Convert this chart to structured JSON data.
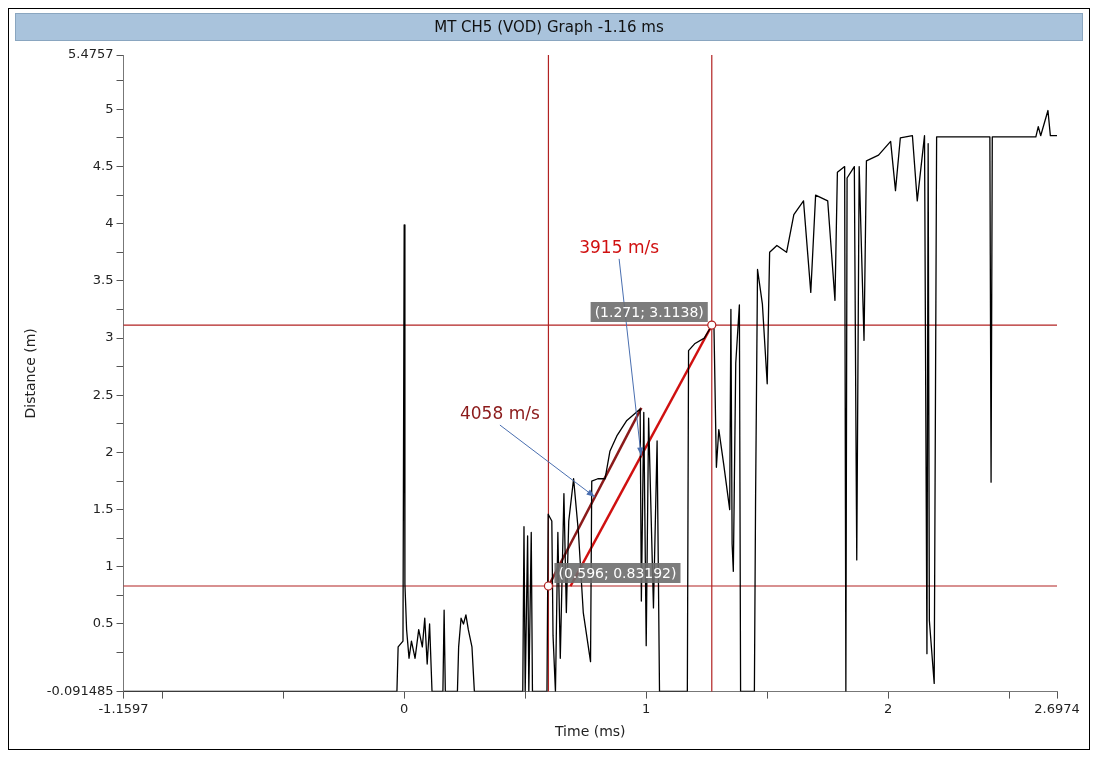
{
  "chart_data": {
    "type": "line",
    "title": "MT CH5 (VOD) Graph -1.16 ms",
    "xlabel": "Time (ms)",
    "ylabel": "Distance (m)",
    "xlim": [
      -1.1597,
      2.6974
    ],
    "xticks": [
      -1.1597,
      {
        "value": -1,
        "label": null
      },
      {
        "value": -0.5,
        "label": null
      },
      0,
      {
        "value": 0.5,
        "label": null
      },
      1,
      {
        "value": 1.5,
        "label": null
      },
      2,
      {
        "value": 2.5,
        "label": null
      },
      2.6974
    ],
    "ylim": [
      -0.091485,
      5.4757
    ],
    "yticks": [
      -0.091485,
      {
        "value": 0.25,
        "label": null
      },
      0.5,
      {
        "value": 0.75,
        "label": null
      },
      1,
      {
        "value": 1.25,
        "label": null
      },
      1.5,
      {
        "value": 1.75,
        "label": null
      },
      2,
      {
        "value": 2.25,
        "label": null
      },
      2.5,
      {
        "value": 2.75,
        "label": null
      },
      3,
      {
        "value": 3.25,
        "label": null
      },
      3.5,
      {
        "value": 3.75,
        "label": null
      },
      4,
      {
        "value": 4.25,
        "label": null
      },
      4.5,
      {
        "value": 4.75,
        "label": null
      },
      5,
      {
        "value": 5.25,
        "label": null
      },
      5.4757
    ],
    "series": [
      {
        "color": "#000000",
        "x": [
          -1.1597,
          -0.03,
          -0.025,
          -0.005,
          0,
          0.003,
          0.01,
          0.02,
          0.03,
          0.045,
          0.06,
          0.075,
          0.085,
          0.095,
          0.105,
          0.115,
          0.16,
          0.165,
          0.17,
          0.22,
          0.225,
          0.235,
          0.245,
          0.255,
          0.265,
          0.28,
          0.29,
          0.49,
          0.495,
          0.5,
          0.51,
          0.515,
          0.525,
          0.53,
          0.59,
          0.595,
          0.61,
          0.615,
          0.625,
          0.635,
          0.645,
          0.66,
          0.67,
          0.68,
          0.7,
          0.72,
          0.74,
          0.77,
          0.775,
          0.8,
          0.83,
          0.85,
          0.88,
          0.92,
          0.975,
          0.98,
          0.99,
          1.0,
          1.01,
          1.03,
          1.045,
          1.055,
          1.17,
          1.175,
          1.2,
          1.24,
          1.271,
          1.28,
          1.29,
          1.3,
          1.32,
          1.345,
          1.35,
          1.355,
          1.36,
          1.37,
          1.385,
          1.39,
          1.447,
          1.452,
          1.46,
          1.48,
          1.5,
          1.51,
          1.54,
          1.58,
          1.61,
          1.65,
          1.68,
          1.7,
          1.75,
          1.78,
          1.79,
          1.82,
          1.825,
          1.83,
          1.86,
          1.87,
          1.88,
          1.9,
          1.91,
          1.96,
          2.01,
          2.03,
          2.05,
          2.1,
          2.12,
          2.15,
          2.16,
          2.165,
          2.17,
          2.19,
          2.2,
          2.42,
          2.425,
          2.43,
          2.61,
          2.62,
          2.63,
          2.66,
          2.67,
          2.6974
        ],
        "values": [
          -0.09,
          -0.09,
          0.3,
          0.35,
          3.99,
          0.85,
          0.45,
          0.2,
          0.35,
          0.2,
          0.45,
          0.3,
          0.55,
          0.15,
          0.5,
          -0.09,
          -0.09,
          0.62,
          -0.09,
          -0.09,
          0.3,
          0.55,
          0.5,
          0.58,
          0.45,
          0.3,
          -0.09,
          -0.09,
          1.35,
          -0.09,
          1.27,
          -0.09,
          1.3,
          -0.09,
          -0.09,
          1.46,
          1.4,
          0.4,
          -0.09,
          1.3,
          0.2,
          1.64,
          0.6,
          1.4,
          1.77,
          1.3,
          0.6,
          0.17,
          1.75,
          1.77,
          1.77,
          2.01,
          2.15,
          2.28,
          2.38,
          0.7,
          2.35,
          0.31,
          2.3,
          0.64,
          2.1,
          -0.09,
          -0.09,
          2.89,
          2.95,
          3.0,
          3.11,
          3.1,
          1.87,
          2.2,
          1.9,
          1.5,
          3.25,
          1.2,
          0.96,
          2.78,
          3.29,
          -0.09,
          -0.09,
          1.61,
          3.6,
          3.3,
          2.6,
          3.75,
          3.81,
          3.75,
          4.08,
          4.2,
          3.4,
          4.25,
          4.2,
          3.33,
          4.45,
          4.5,
          -0.09,
          4.4,
          4.5,
          1.06,
          4.5,
          2.98,
          4.55,
          4.6,
          4.72,
          4.29,
          4.75,
          4.77,
          4.2,
          4.77,
          0.24,
          4.7,
          0.53,
          -0.02,
          4.76,
          4.76,
          1.74,
          4.76,
          4.76,
          4.85,
          4.77,
          4.99,
          4.77,
          4.77
        ]
      },
      {
        "name": "4058 m/s",
        "color": "#8b1a1a",
        "x": [
          0.596,
          0.98
        ],
        "values": [
          0.83,
          2.39
        ]
      },
      {
        "name": "3915 m/s",
        "color": "#d01010",
        "x": [
          0.687,
          1.271
        ],
        "values": [
          0.83,
          3.11
        ]
      }
    ],
    "ref_lines": [
      {
        "axis": "x",
        "value": 0.596,
        "color": "#b22222"
      },
      {
        "axis": "x",
        "value": 1.271,
        "color": "#b22222"
      },
      {
        "axis": "y",
        "value": 0.83192,
        "color": "#b22222"
      },
      {
        "axis": "y",
        "value": 3.1138,
        "color": "#b22222"
      }
    ],
    "annotations": [
      {
        "text": "(0.596; 0.83192)",
        "x": 0.596,
        "y": 0.83192
      },
      {
        "text": "(1.271; 3.1138)",
        "x": 1.271,
        "y": 3.1138
      }
    ]
  }
}
